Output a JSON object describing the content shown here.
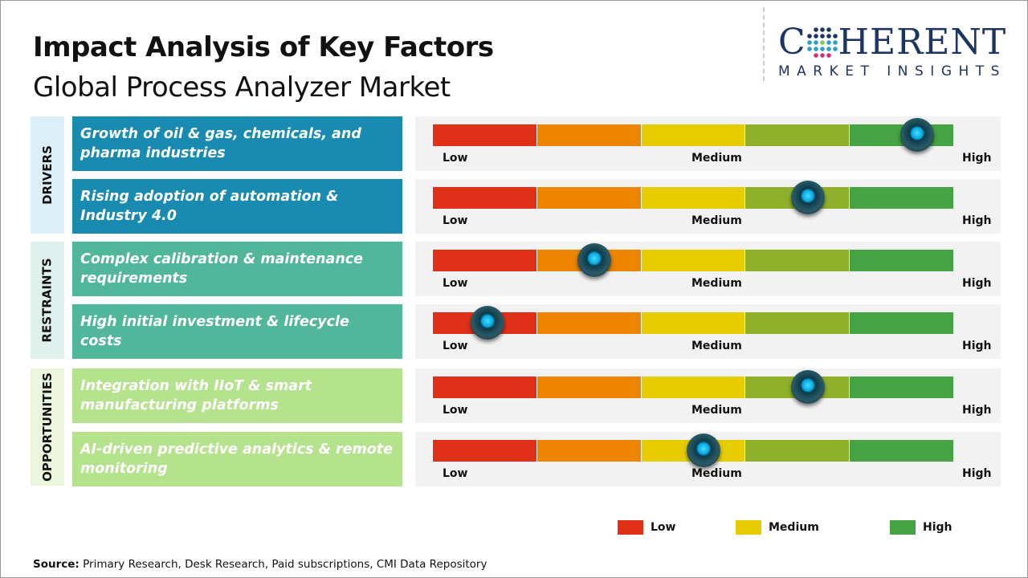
{
  "header": {
    "title": "Impact Analysis of Key Factors",
    "subtitle": "Global Process Analyzer Market"
  },
  "logo": {
    "main_left": "C",
    "main_right": "HERENT",
    "sub": "MARKET INSIGHTS"
  },
  "colors": {
    "low": "#e03018",
    "low_mid": "#ee8500",
    "medium": "#e6cc00",
    "mid_high": "#8fb02a",
    "high": "#46a444",
    "drivers": "#1a8bb0",
    "restraints": "#52b79a",
    "opportunities": "#b5e28c"
  },
  "scale_labels": {
    "low": "Low",
    "medium": "Medium",
    "high": "High"
  },
  "chart_data": {
    "type": "gauge",
    "scale": [
      "Low",
      "Medium",
      "High"
    ],
    "categories": [
      {
        "name": "DRIVERS",
        "factors": [
          {
            "label": "Growth of oil & gas, chemicals, and pharma industries",
            "impact": 0.93
          },
          {
            "label": "Rising adoption of automation & Industry 4.0",
            "impact": 0.72
          }
        ]
      },
      {
        "name": "RESTRAINTS",
        "factors": [
          {
            "label": "Complex calibration & maintenance requirements",
            "impact": 0.31
          },
          {
            "label": "High initial investment & lifecycle costs",
            "impact": 0.105
          }
        ]
      },
      {
        "name": "OPPORTUNITIES",
        "factors": [
          {
            "label": "Integration with IIoT & smart manufacturing platforms",
            "impact": 0.72
          },
          {
            "label": "AI-driven predictive analytics & remote monitoring",
            "impact": 0.52
          }
        ]
      }
    ],
    "legend": [
      {
        "label": "Low",
        "color": "#e03018"
      },
      {
        "label": "Medium",
        "color": "#e6cc00"
      },
      {
        "label": "High",
        "color": "#46a444"
      }
    ]
  },
  "source": {
    "label": "Source:",
    "text": " Primary Research, Desk Research, Paid subscriptions, CMI Data Repository"
  }
}
